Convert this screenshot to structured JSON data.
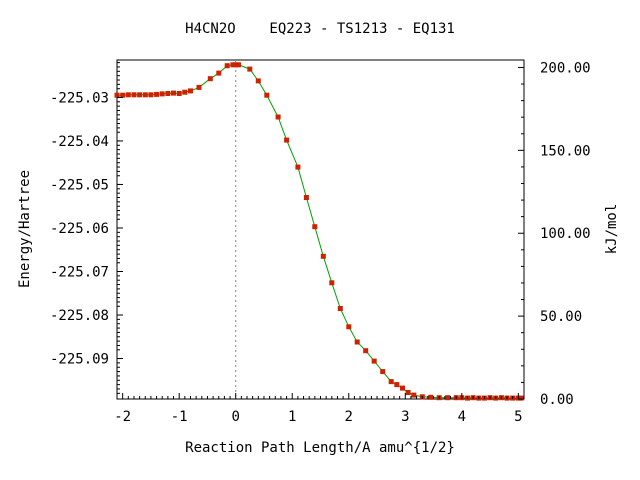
{
  "chart_data": {
    "type": "line",
    "title": "H4CN2O    EQ223 - TS1213 - EQ131",
    "xlabel": "Reaction Path Length/A amu^{1/2}",
    "ylabel": "Energy/Hartree",
    "y2label": "kJ/mol",
    "xlim": [
      -2.1,
      5.1
    ],
    "ylim": [
      -225.0993,
      -225.0214
    ],
    "y2lim": [
      0,
      204.5
    ],
    "x_ticks": [
      -2,
      -1,
      0,
      1,
      2,
      3,
      4,
      5
    ],
    "x_tick_labels": [
      "-2",
      "-1",
      "0",
      "1",
      "2",
      "3",
      "4",
      "5"
    ],
    "y_ticks": [
      -225.03,
      -225.04,
      -225.05,
      -225.06,
      -225.07,
      -225.08,
      -225.09
    ],
    "y_tick_labels": [
      "-225.03",
      "-225.04",
      "-225.05",
      "-225.06",
      "-225.07",
      "-225.08",
      "-225.09"
    ],
    "y2_ticks": [
      0,
      50,
      100,
      150,
      200
    ],
    "y2_tick_labels": [
      "0.00",
      "50.00",
      "100.00",
      "150.00",
      "200.00"
    ],
    "ts_x": 0,
    "grid": false,
    "line_color": "#00a000",
    "marker_color": "#cc2200",
    "dash_color": "#888888",
    "series": [
      {
        "x": [
          -2.1,
          -2.0,
          -1.9,
          -1.8,
          -1.7,
          -1.6,
          -1.5,
          -1.4,
          -1.3,
          -1.2,
          -1.1,
          -1.0,
          -0.9,
          -0.8,
          -0.65,
          -0.45,
          -0.3,
          -0.15,
          -0.05,
          0.0,
          0.05,
          0.25,
          0.4,
          0.55,
          0.75,
          0.9,
          1.1,
          1.25,
          1.4,
          1.55,
          1.7,
          1.85,
          2.0,
          2.15,
          2.3,
          2.45,
          2.6,
          2.75,
          2.85,
          2.95,
          3.05,
          3.15,
          3.3,
          3.45,
          3.6,
          3.75,
          3.9,
          4.0,
          4.1,
          4.2,
          4.3,
          4.4,
          4.5,
          4.6,
          4.7,
          4.8,
          4.9,
          5.0,
          5.05
        ],
        "y": [
          -225.0295,
          -225.0295,
          -225.0294,
          -225.0294,
          -225.0294,
          -225.0294,
          -225.0294,
          -225.0293,
          -225.0292,
          -225.0291,
          -225.029,
          -225.0291,
          -225.0288,
          -225.0285,
          -225.0277,
          -225.0257,
          -225.0244,
          -225.0227,
          -225.0225,
          -225.0225,
          -225.0225,
          -225.0235,
          -225.0262,
          -225.0295,
          -225.0345,
          -225.0398,
          -225.046,
          -225.053,
          -225.0597,
          -225.0665,
          -225.0726,
          -225.0785,
          -225.0827,
          -225.0862,
          -225.0882,
          -225.0906,
          -225.093,
          -225.0953,
          -225.096,
          -225.0968,
          -225.0978,
          -225.0984,
          -225.0988,
          -225.0989,
          -225.099,
          -225.099,
          -225.099,
          -225.099,
          -225.0991,
          -225.099,
          -225.0991,
          -225.0991,
          -225.099,
          -225.0991,
          -225.099,
          -225.0991,
          -225.0991,
          -225.0991,
          -225.0991
        ]
      }
    ]
  }
}
